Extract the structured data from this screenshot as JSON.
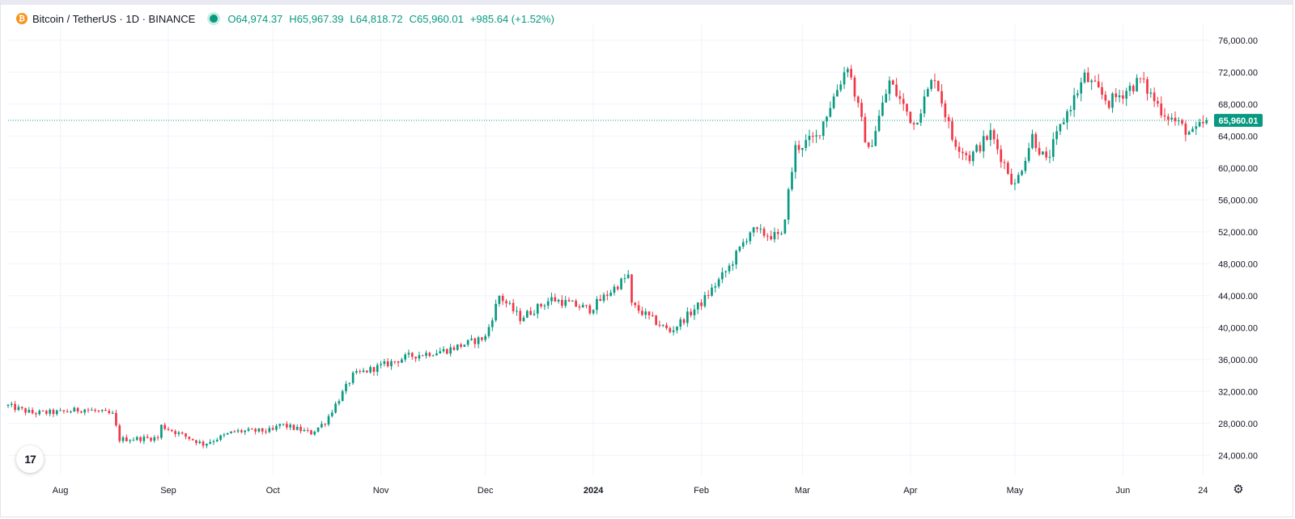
{
  "header": {
    "symbol": "Bitcoin / TetherUS · 1D · BINANCE",
    "coin_icon": "bitcoin-coin-icon",
    "status_icon": "market-open-dot-icon",
    "open_label": "O",
    "open": "64,974.37",
    "high_label": "H",
    "high": "65,967.39",
    "low_label": "L",
    "low": "64,818.72",
    "close_label": "C",
    "close": "65,960.01",
    "change": "+985.64 (+1.52%)"
  },
  "logo": {
    "icon": "tradingview-logo-icon",
    "text": "17"
  },
  "settings": {
    "icon": "gear-icon"
  },
  "colors": {
    "up": "#089981",
    "down": "#f23645",
    "grid": "#f0f3fa",
    "text": "#131722",
    "price_line": "#089981"
  },
  "chart_data": {
    "type": "candlestick",
    "symbol": "BTCUSDT",
    "interval": "1D",
    "exchange": "BINANCE",
    "y_range": [
      21500,
      78000
    ],
    "y_ticks": [
      "24,000.00",
      "28,000.00",
      "32,000.00",
      "36,000.00",
      "40,000.00",
      "44,000.00",
      "48,000.00",
      "52,000.00",
      "56,000.00",
      "60,000.00",
      "64,000.00",
      "68,000.00",
      "72,000.00",
      "76,000.00"
    ],
    "x_range": [
      "2023-07-17",
      "2024-06-26"
    ],
    "x_ticks": [
      {
        "date": "2023-08-01",
        "label": "Aug"
      },
      {
        "date": "2023-09-01",
        "label": "Sep"
      },
      {
        "date": "2023-10-01",
        "label": "Oct"
      },
      {
        "date": "2023-11-01",
        "label": "Nov"
      },
      {
        "date": "2023-12-01",
        "label": "Dec"
      },
      {
        "date": "2024-01-01",
        "label": "2024"
      },
      {
        "date": "2024-02-01",
        "label": "Feb"
      },
      {
        "date": "2024-03-01",
        "label": "Mar"
      },
      {
        "date": "2024-04-01",
        "label": "Apr"
      },
      {
        "date": "2024-05-01",
        "label": "May"
      },
      {
        "date": "2024-06-01",
        "label": "Jun"
      },
      {
        "date": "2024-06-24",
        "label": "24"
      }
    ],
    "last_price": 65960.01,
    "last_price_label": "65,960.01",
    "grid": true,
    "price_scale": "right",
    "anchors": [
      [
        "2023-07-17",
        30200
      ],
      [
        "2023-07-24",
        29300
      ],
      [
        "2023-08-01",
        29400
      ],
      [
        "2023-08-08",
        29800
      ],
      [
        "2023-08-16",
        29100
      ],
      [
        "2023-08-18",
        26000
      ],
      [
        "2023-08-29",
        26200
      ],
      [
        "2023-08-30",
        27700
      ],
      [
        "2023-09-11",
        25400
      ],
      [
        "2023-09-20",
        27000
      ],
      [
        "2023-10-01",
        27100
      ],
      [
        "2023-10-03",
        27900
      ],
      [
        "2023-10-12",
        26800
      ],
      [
        "2023-10-16",
        28200
      ],
      [
        "2023-10-24",
        34000
      ],
      [
        "2023-11-09",
        36400
      ],
      [
        "2023-11-20",
        37200
      ],
      [
        "2023-12-01",
        38800
      ],
      [
        "2023-12-05",
        44000
      ],
      [
        "2023-12-11",
        41200
      ],
      [
        "2023-12-20",
        43600
      ],
      [
        "2023-12-31",
        42300
      ],
      [
        "2024-01-11",
        46500
      ],
      [
        "2024-01-12",
        42800
      ],
      [
        "2024-01-23",
        39500
      ],
      [
        "2024-02-01",
        43100
      ],
      [
        "2024-02-09",
        47600
      ],
      [
        "2024-02-15",
        52100
      ],
      [
        "2024-02-24",
        51300
      ],
      [
        "2024-02-28",
        62500
      ],
      [
        "2024-03-05",
        63800
      ],
      [
        "2024-03-14",
        73000
      ],
      [
        "2024-03-20",
        62000
      ],
      [
        "2024-03-26",
        70800
      ],
      [
        "2024-04-02",
        65500
      ],
      [
        "2024-04-08",
        71600
      ],
      [
        "2024-04-13",
        63700
      ],
      [
        "2024-04-18",
        61300
      ],
      [
        "2024-04-24",
        64300
      ],
      [
        "2024-05-01",
        57700
      ],
      [
        "2024-05-06",
        64000
      ],
      [
        "2024-05-10",
        60700
      ],
      [
        "2024-05-15",
        66100
      ],
      [
        "2024-05-21",
        71400
      ],
      [
        "2024-05-28",
        68200
      ],
      [
        "2024-06-06",
        71000
      ],
      [
        "2024-06-12",
        67300
      ],
      [
        "2024-06-18",
        65100
      ],
      [
        "2024-06-21",
        64200
      ],
      [
        "2024-06-25",
        65960
      ]
    ]
  }
}
